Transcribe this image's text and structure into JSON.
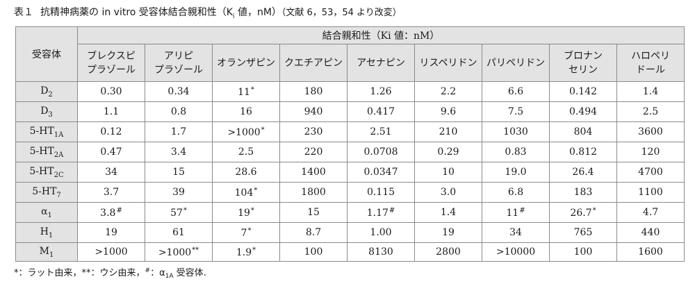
{
  "caption": {
    "number": "表１",
    "title_prefix": "抗精神病薬の in vitro 受容体結合親和性（K",
    "title_sub": "i",
    "title_suffix": " 値，nM）",
    "reference": "（文献 6，53，54 より改変）"
  },
  "table": {
    "receptor_header": "受容体",
    "group_header": "結合親和性（Ki 値：nM）",
    "drugs": [
      "ブレクスピ\nプラゾール",
      "アリピ\nプラゾール",
      "オランザピン",
      "クエチアピン",
      "アセナピン",
      "リスペリドン",
      "パリペリドン",
      "ブロナン\nセリン",
      "ハロペリ\nドール"
    ],
    "rows": [
      {
        "receptor": "D",
        "sub": "2",
        "cells": [
          [
            "0.30",
            ""
          ],
          [
            "0.34",
            ""
          ],
          [
            "11",
            "*"
          ],
          [
            "180",
            ""
          ],
          [
            "1.26",
            ""
          ],
          [
            "2.2",
            ""
          ],
          [
            "6.6",
            ""
          ],
          [
            "0.142",
            ""
          ],
          [
            "1.4",
            ""
          ]
        ]
      },
      {
        "receptor": "D",
        "sub": "3",
        "cells": [
          [
            "1.1",
            ""
          ],
          [
            "0.8",
            ""
          ],
          [
            "16",
            ""
          ],
          [
            "940",
            ""
          ],
          [
            "0.417",
            ""
          ],
          [
            "9.6",
            ""
          ],
          [
            "7.5",
            ""
          ],
          [
            "0.494",
            ""
          ],
          [
            "2.5",
            ""
          ]
        ]
      },
      {
        "receptor": "5-HT",
        "sub": "1A",
        "cells": [
          [
            "0.12",
            ""
          ],
          [
            "1.7",
            ""
          ],
          [
            ">1000",
            "*"
          ],
          [
            "230",
            ""
          ],
          [
            "2.51",
            ""
          ],
          [
            "210",
            ""
          ],
          [
            "1030",
            ""
          ],
          [
            "804",
            ""
          ],
          [
            "3600",
            ""
          ]
        ]
      },
      {
        "receptor": "5-HT",
        "sub": "2A",
        "cells": [
          [
            "0.47",
            ""
          ],
          [
            "3.4",
            ""
          ],
          [
            "2.5",
            ""
          ],
          [
            "220",
            ""
          ],
          [
            "0.0708",
            ""
          ],
          [
            "0.29",
            ""
          ],
          [
            "0.83",
            ""
          ],
          [
            "0.812",
            ""
          ],
          [
            "120",
            ""
          ]
        ]
      },
      {
        "receptor": "5-HT",
        "sub": "2C",
        "cells": [
          [
            "34",
            ""
          ],
          [
            "15",
            ""
          ],
          [
            "28.6",
            ""
          ],
          [
            "1400",
            ""
          ],
          [
            "0.0347",
            ""
          ],
          [
            "10",
            ""
          ],
          [
            "19.0",
            ""
          ],
          [
            "26.4",
            ""
          ],
          [
            "4700",
            ""
          ]
        ]
      },
      {
        "receptor": "5-HT",
        "sub": "7",
        "cells": [
          [
            "3.7",
            ""
          ],
          [
            "39",
            ""
          ],
          [
            "104",
            "*"
          ],
          [
            "1800",
            ""
          ],
          [
            "0.115",
            ""
          ],
          [
            "3.0",
            ""
          ],
          [
            "6.8",
            ""
          ],
          [
            "183",
            ""
          ],
          [
            "1100",
            ""
          ]
        ]
      },
      {
        "receptor": "α",
        "sub": "1",
        "cells": [
          [
            "3.8",
            "#"
          ],
          [
            "57",
            "*"
          ],
          [
            "19",
            "*"
          ],
          [
            "15",
            ""
          ],
          [
            "1.17",
            "#"
          ],
          [
            "1.4",
            ""
          ],
          [
            "11",
            "#"
          ],
          [
            "26.7",
            "*"
          ],
          [
            "4.7",
            ""
          ]
        ]
      },
      {
        "receptor": "H",
        "sub": "1",
        "cells": [
          [
            "19",
            ""
          ],
          [
            "61",
            ""
          ],
          [
            "7",
            "*"
          ],
          [
            "8.7",
            ""
          ],
          [
            "1.00",
            ""
          ],
          [
            "19",
            ""
          ],
          [
            "34",
            ""
          ],
          [
            "765",
            ""
          ],
          [
            "440",
            ""
          ]
        ]
      },
      {
        "receptor": "M",
        "sub": "1",
        "cells": [
          [
            ">1000",
            ""
          ],
          [
            ">1000",
            "**"
          ],
          [
            "1.9",
            "*"
          ],
          [
            "100",
            ""
          ],
          [
            "8130",
            ""
          ],
          [
            "2800",
            ""
          ],
          [
            ">10000",
            ""
          ],
          [
            "100",
            ""
          ],
          [
            "1600",
            ""
          ]
        ]
      }
    ]
  },
  "footnote": {
    "part1": "*：ラット由来，**：ウシ由来，",
    "sup": "#",
    "part2": "：α",
    "sub": "1A",
    "part3": " 受容体."
  }
}
